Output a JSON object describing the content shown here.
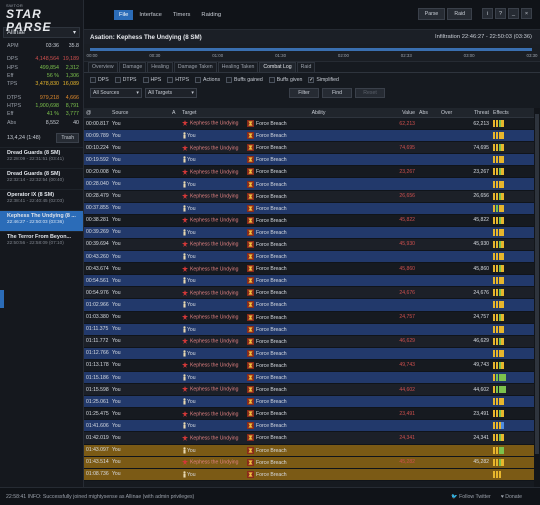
{
  "app": {
    "logo_small": "SWTOR",
    "logo_main": "STAR PARSE"
  },
  "character": {
    "name": "Allinae"
  },
  "sidebar_stats": [
    {
      "label": "APM",
      "v1": "03:36",
      "v2": "35.8",
      "c1": "#c7ccd4",
      "c2": "#c7ccd4"
    },
    {
      "label": "",
      "v1": "",
      "v2": "",
      "c1": "#c7ccd4",
      "c2": "#c7ccd4"
    },
    {
      "label": "DPS",
      "v1": "4,148,564",
      "v2": "19,189",
      "c1": "#d0504e",
      "c2": "#d0504e"
    },
    {
      "label": "HPS",
      "v1": "499,854",
      "v2": "2,312",
      "c1": "#7cc24c",
      "c2": "#7cc24c"
    },
    {
      "label": "Eff",
      "v1": "56 %",
      "v2": "1,306",
      "c1": "#7cc24c",
      "c2": "#7cc24c"
    },
    {
      "label": "TPS",
      "v1": "3,478,830",
      "v2": "16,089",
      "c1": "#e7b62c",
      "c2": "#e7b62c"
    },
    {
      "label": "",
      "v1": "",
      "v2": "",
      "c1": "#c7ccd4",
      "c2": "#c7ccd4"
    },
    {
      "label": "DTPS",
      "v1": "979,218",
      "v2": "4,666",
      "c1": "#e08a2c",
      "c2": "#e08a2c"
    },
    {
      "label": "HTPS",
      "v1": "1,900,698",
      "v2": "8,791",
      "c1": "#7cc24c",
      "c2": "#7cc24c"
    },
    {
      "label": "Eff",
      "v1": "41 %",
      "v2": "3,777",
      "c1": "#7cc24c",
      "c2": "#7cc24c"
    },
    {
      "label": "Abs",
      "v1": "8,552",
      "v2": "40",
      "c1": "#c7ccd4",
      "c2": "#c7ccd4"
    }
  ],
  "sidebar_total": {
    "text": "13,4,24 (1:48)",
    "trash_label": "Trash"
  },
  "fights": [
    {
      "name": "Dread Guards (8 SM)",
      "time": "22:28:09 - 22:31:51 (03:41)",
      "active": false
    },
    {
      "name": "Dread Guards (8 SM)",
      "time": "22:32:14 - 22:32:54 (00:40)",
      "active": false
    },
    {
      "name": "Operator IX (8 SM)",
      "time": "22:38:41 - 22:40:45 (02:03)",
      "active": false
    },
    {
      "name": "Kephess The Undying (8 ...",
      "time": "22:46:27 - 22:50:03 (03:36)",
      "active": true
    },
    {
      "name": "The Terror From Beyon...",
      "time": "22:50:56 - 22:58:09 (07:10)",
      "active": false
    }
  ],
  "menu": {
    "items": [
      "File",
      "Interface",
      "Timers",
      "Raiding"
    ],
    "active": "File",
    "parse_label": "Parse",
    "raid_label": "Raid"
  },
  "encounter": {
    "title": "Asation: Kephess The Undying (8 SM)",
    "right": "Infiltration 22:46:27 - 22:50:03 (03:36)"
  },
  "timeline": {
    "labels": [
      "00:00",
      "00:30",
      "01:00",
      "01:30",
      "02:00",
      "02:33",
      "03:00",
      "03:30"
    ]
  },
  "subtabs": {
    "items": [
      "Overview",
      "Damage",
      "Healing",
      "Damage Taken",
      "Healing Taken",
      "Combat Log",
      "Raid"
    ],
    "active": "Combat Log"
  },
  "checks": [
    {
      "label": "DPS",
      "checked": false
    },
    {
      "label": "DTPS",
      "checked": false
    },
    {
      "label": "HPS",
      "checked": false
    },
    {
      "label": "HTPS",
      "checked": false
    },
    {
      "label": "Actions",
      "checked": false
    },
    {
      "label": "Buffs gained",
      "checked": false
    },
    {
      "label": "Buffs given",
      "checked": false
    },
    {
      "label": "Simplified",
      "checked": true
    }
  ],
  "filters": {
    "source": "All Sources",
    "target": "All Targets",
    "filter_label": "Filter",
    "find_label": "Find",
    "reset_label": "Reset"
  },
  "columns": {
    "at": "@",
    "source": "Source",
    "a": "A",
    "target": "Target",
    "ability": "Ability",
    "value": "Value",
    "abs": "Abs",
    "over": "Over",
    "threat": "Threat",
    "effects": "Effects"
  },
  "log_rows": [
    {
      "t": "00:00.817",
      "src": "You",
      "tgt": "Kephess the Undying",
      "abl": "Force Breach",
      "val": "62,213",
      "thr": "62,213",
      "type": "out",
      "effs": [
        "y",
        "y",
        "g",
        "y"
      ]
    },
    {
      "t": "00:09.789",
      "src": "You",
      "tgt": "You",
      "abl": "Force Breach",
      "val": "",
      "thr": "",
      "type": "inc",
      "effs": [
        "y",
        "y",
        "y",
        "y"
      ]
    },
    {
      "t": "00:10.224",
      "src": "You",
      "tgt": "Kephess the Undying",
      "abl": "Force Breach",
      "val": "74,695",
      "thr": "74,695",
      "type": "out",
      "effs": [
        "y",
        "y",
        "g",
        "y"
      ]
    },
    {
      "t": "00:19.592",
      "src": "You",
      "tgt": "You",
      "abl": "Force Breach",
      "val": "",
      "thr": "",
      "type": "inc",
      "effs": [
        "y",
        "y",
        "y",
        "y"
      ]
    },
    {
      "t": "00:20.008",
      "src": "You",
      "tgt": "Kephess the Undying",
      "abl": "Force Breach",
      "val": "23,267",
      "thr": "23,267",
      "type": "out",
      "effs": [
        "y",
        "y",
        "g",
        "y"
      ]
    },
    {
      "t": "00:28.040",
      "src": "You",
      "tgt": "You",
      "abl": "Force Breach",
      "val": "",
      "thr": "",
      "type": "inc",
      "effs": [
        "y",
        "y",
        "y",
        "y"
      ]
    },
    {
      "t": "00:28.479",
      "src": "You",
      "tgt": "Kephess the Undying",
      "abl": "Force Breach",
      "val": "26,656",
      "thr": "26,656",
      "type": "out",
      "effs": [
        "y",
        "y",
        "g",
        "y"
      ]
    },
    {
      "t": "00:37.855",
      "src": "You",
      "tgt": "You",
      "abl": "Force Breach",
      "val": "",
      "thr": "",
      "type": "inc",
      "effs": [
        "y",
        "g",
        "y",
        "y"
      ]
    },
    {
      "t": "00:38.281",
      "src": "You",
      "tgt": "Kephess the Undying",
      "abl": "Force Breach",
      "val": "45,822",
      "thr": "45,822",
      "type": "out",
      "effs": [
        "y",
        "y",
        "g",
        "y"
      ]
    },
    {
      "t": "00:39.269",
      "src": "You",
      "tgt": "You",
      "abl": "Force Breach",
      "val": "",
      "thr": "",
      "type": "inc",
      "effs": [
        "y",
        "y",
        "y",
        "y"
      ]
    },
    {
      "t": "00:39.694",
      "src": "You",
      "tgt": "Kephess the Undying",
      "abl": "Force Breach",
      "val": "45,930",
      "thr": "45,930",
      "type": "out",
      "effs": [
        "y",
        "y",
        "g",
        "y"
      ]
    },
    {
      "t": "00:43.260",
      "src": "You",
      "tgt": "You",
      "abl": "Force Breach",
      "val": "",
      "thr": "",
      "type": "inc",
      "effs": [
        "y",
        "y",
        "y",
        "y"
      ]
    },
    {
      "t": "00:43.674",
      "src": "You",
      "tgt": "Kephess the Undying",
      "abl": "Force Breach",
      "val": "45,860",
      "thr": "45,860",
      "type": "out",
      "effs": [
        "y",
        "y",
        "g",
        "y"
      ]
    },
    {
      "t": "00:54.561",
      "src": "You",
      "tgt": "You",
      "abl": "Force Breach",
      "val": "",
      "thr": "",
      "type": "inc",
      "effs": [
        "y",
        "y",
        "y",
        "y"
      ]
    },
    {
      "t": "00:54.976",
      "src": "You",
      "tgt": "Kephess the Undying",
      "abl": "Force Breach",
      "val": "24,676",
      "thr": "24,676",
      "type": "out",
      "effs": [
        "y",
        "y",
        "g",
        "y"
      ]
    },
    {
      "t": "01:02.966",
      "src": "You",
      "tgt": "You",
      "abl": "Force Breach",
      "val": "",
      "thr": "",
      "type": "inc",
      "effs": [
        "y",
        "y",
        "y",
        "y"
      ]
    },
    {
      "t": "01:03.380",
      "src": "You",
      "tgt": "Kephess the Undying",
      "abl": "Force Breach",
      "val": "24,757",
      "thr": "24,757",
      "type": "out",
      "effs": [
        "y",
        "y",
        "g",
        "y"
      ]
    },
    {
      "t": "01:11.375",
      "src": "You",
      "tgt": "You",
      "abl": "Force Breach",
      "val": "",
      "thr": "",
      "type": "inc",
      "effs": [
        "y",
        "y",
        "y",
        "y"
      ]
    },
    {
      "t": "01:11.772",
      "src": "You",
      "tgt": "Kephess the Undying",
      "abl": "Force Breach",
      "val": "46,629",
      "thr": "46,629",
      "type": "out",
      "effs": [
        "y",
        "y",
        "g",
        "y"
      ]
    },
    {
      "t": "01:12.766",
      "src": "You",
      "tgt": "You",
      "abl": "Force Breach",
      "val": "",
      "thr": "",
      "type": "inc",
      "effs": [
        "y",
        "y",
        "y",
        "y"
      ]
    },
    {
      "t": "01:13.178",
      "src": "You",
      "tgt": "Kephess the Undying",
      "abl": "Force Breach",
      "val": "49,743",
      "thr": "49,743",
      "type": "out",
      "effs": [
        "y",
        "y",
        "g",
        "y"
      ]
    },
    {
      "t": "01:15.186",
      "src": "You",
      "tgt": "You",
      "abl": "Force Breach",
      "val": "",
      "thr": "",
      "type": "inc",
      "effs": [
        "y",
        "g",
        "g",
        "g",
        "g"
      ]
    },
    {
      "t": "01:15.598",
      "src": "You",
      "tgt": "Kephess the Undying",
      "abl": "Force Breach",
      "val": "44,602",
      "thr": "44,602",
      "type": "out",
      "effs": [
        "y",
        "g",
        "g",
        "g",
        "g"
      ]
    },
    {
      "t": "01:25.061",
      "src": "You",
      "tgt": "You",
      "abl": "Force Breach",
      "val": "",
      "thr": "",
      "type": "inc",
      "effs": [
        "y",
        "y",
        "y",
        "y"
      ]
    },
    {
      "t": "01:25.475",
      "src": "You",
      "tgt": "Kephess the Undying",
      "abl": "Force Breach",
      "val": "23,491",
      "thr": "23,491",
      "type": "out",
      "effs": [
        "y",
        "y",
        "g",
        "y"
      ]
    },
    {
      "t": "01:41.606",
      "src": "You",
      "tgt": "You",
      "abl": "Force Breach",
      "val": "",
      "thr": "",
      "type": "inc",
      "effs": [
        "y",
        "y",
        "y",
        "b"
      ]
    },
    {
      "t": "01:42.019",
      "src": "You",
      "tgt": "Kephess the Undying",
      "abl": "Force Breach",
      "val": "24,341",
      "thr": "24,341",
      "type": "out",
      "effs": [
        "y",
        "y",
        "g",
        "y"
      ]
    },
    {
      "t": "01:43.097",
      "src": "You",
      "tgt": "You",
      "abl": "Force Breach",
      "val": "",
      "thr": "",
      "type": "hl",
      "effs": [
        "y",
        "y",
        "g",
        "g"
      ]
    },
    {
      "t": "01:43.514",
      "src": "You",
      "tgt": "Kephess the Undying",
      "abl": "Force Breach",
      "val": "45,282",
      "thr": "45,282",
      "type": "hl",
      "effs": [
        "y",
        "y",
        "g",
        "y"
      ]
    },
    {
      "t": "01:08.736",
      "src": "You",
      "tgt": "You",
      "abl": "Force Breach",
      "val": "",
      "thr": "",
      "type": "hl",
      "effs": [
        "y",
        "y",
        "y"
      ]
    }
  ],
  "status": {
    "text": "22:58:41 INFO: Successfully joined mightysense as Allinae (with admin privileges)",
    "follow": "Follow Twitter",
    "donate": "Donate"
  }
}
